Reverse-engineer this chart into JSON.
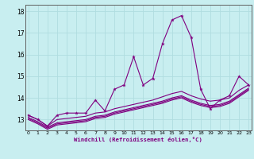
{
  "title": "",
  "xlabel": "Windchill (Refroidissement éolien,°C)",
  "bg_color": "#c8eef0",
  "line_color": "#800080",
  "grid_color": "#b0dde0",
  "x": [
    0,
    1,
    2,
    3,
    4,
    5,
    6,
    7,
    8,
    9,
    10,
    11,
    12,
    13,
    14,
    15,
    16,
    17,
    18,
    19,
    20,
    21,
    22,
    23
  ],
  "series1": [
    13.2,
    13.0,
    12.7,
    13.2,
    13.3,
    13.3,
    13.3,
    13.9,
    13.4,
    14.4,
    14.6,
    15.9,
    14.6,
    14.9,
    16.5,
    17.6,
    17.8,
    16.8,
    14.4,
    13.5,
    13.9,
    14.1,
    15.0,
    14.6
  ],
  "series2": [
    13.2,
    13.0,
    12.7,
    13.0,
    13.05,
    13.1,
    13.15,
    13.3,
    13.35,
    13.5,
    13.6,
    13.7,
    13.8,
    13.9,
    14.05,
    14.2,
    14.3,
    14.1,
    13.95,
    13.85,
    13.9,
    14.0,
    14.35,
    14.6
  ],
  "series3": [
    13.1,
    12.9,
    12.65,
    12.85,
    12.9,
    12.95,
    13.0,
    13.15,
    13.2,
    13.35,
    13.45,
    13.55,
    13.65,
    13.75,
    13.85,
    14.0,
    14.1,
    13.9,
    13.75,
    13.65,
    13.7,
    13.85,
    14.15,
    14.45
  ],
  "series4": [
    13.05,
    12.85,
    12.6,
    12.8,
    12.85,
    12.9,
    12.95,
    13.1,
    13.15,
    13.3,
    13.4,
    13.5,
    13.6,
    13.7,
    13.8,
    13.95,
    14.05,
    13.85,
    13.7,
    13.6,
    13.65,
    13.8,
    14.1,
    14.4
  ],
  "series5": [
    13.0,
    12.8,
    12.55,
    12.75,
    12.8,
    12.85,
    12.9,
    13.05,
    13.1,
    13.25,
    13.35,
    13.45,
    13.55,
    13.65,
    13.75,
    13.9,
    14.0,
    13.8,
    13.65,
    13.55,
    13.6,
    13.75,
    14.05,
    14.35
  ],
  "ylim": [
    12.5,
    18.3
  ],
  "yticks": [
    13,
    14,
    15,
    16,
    17,
    18
  ],
  "xticks": [
    0,
    1,
    2,
    3,
    4,
    5,
    6,
    7,
    8,
    9,
    10,
    11,
    12,
    13,
    14,
    15,
    16,
    17,
    18,
    19,
    20,
    21,
    22,
    23
  ],
  "spine_color": "#606060"
}
